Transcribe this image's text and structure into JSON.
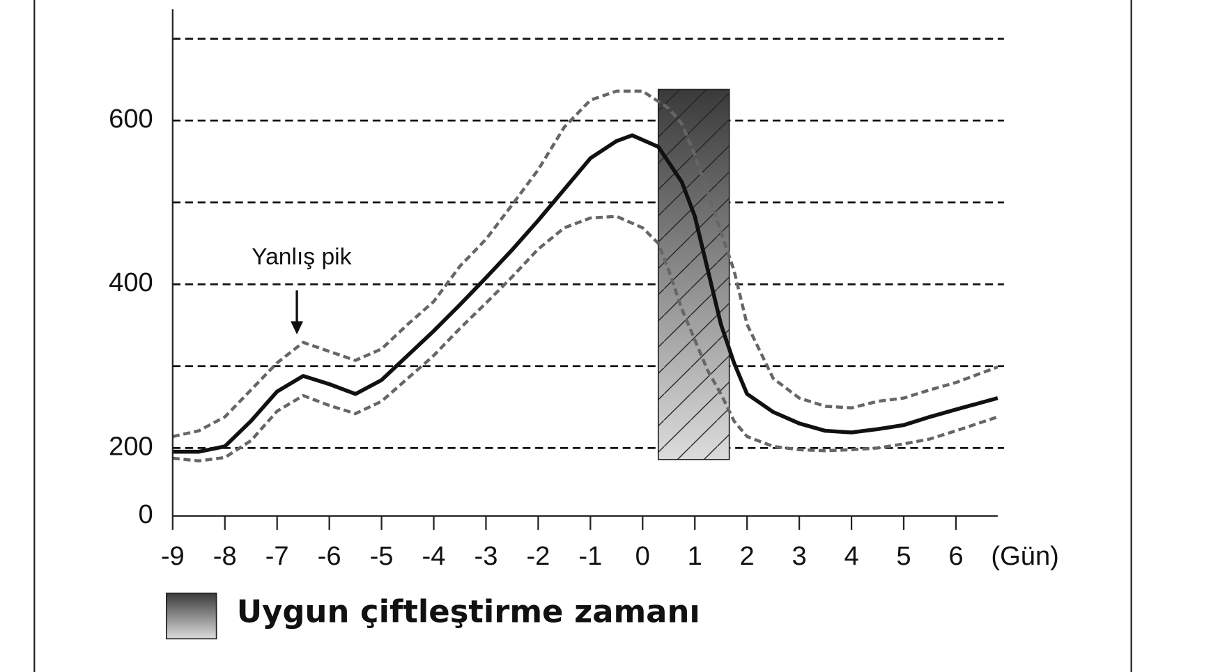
{
  "chart_data": {
    "type": "line",
    "xlim": [
      -9,
      6.8
    ],
    "xticks": [
      -9,
      -8,
      -7,
      -6,
      -5,
      -4,
      -3,
      -2,
      -1,
      0,
      1,
      2,
      3,
      4,
      5,
      6
    ],
    "x_unit": "(Gün)",
    "ylim": [
      0,
      736
    ],
    "yticks": [
      0,
      200,
      400,
      600
    ],
    "axis_break": true,
    "gridlines": [
      200,
      300,
      400,
      500,
      600,
      700
    ],
    "annotation": "Yanlış pik",
    "highlight": {
      "label": "Uygun çiftleştirme zamanı",
      "x": [
        0.3,
        1.66
      ],
      "y": [
        166,
        638
      ]
    },
    "series": [
      {
        "style": "dashed",
        "color": "#666666",
        "x": [
          -9,
          -8.5,
          -8,
          -7.5,
          -7,
          -6.5,
          -6,
          -5.5,
          -5,
          -4.5,
          -4,
          -3.5,
          -3,
          -2.5,
          -2,
          -1.5,
          -1,
          -0.5,
          0,
          0.5,
          0.75,
          1,
          1.25,
          1.5,
          1.75,
          2,
          2.5,
          3,
          3.5,
          4,
          4.5,
          5,
          5.5,
          6,
          6.8
        ],
        "values": [
          214,
          221,
          238,
          271,
          304,
          329,
          318,
          307,
          321,
          351,
          379,
          422,
          455,
          497,
          540,
          592,
          625,
          636,
          636,
          615,
          596,
          558,
          511,
          464,
          417,
          351,
          285,
          261,
          251,
          249,
          257,
          261,
          271,
          280,
          299
        ]
      },
      {
        "style": "solid",
        "color": "#111111",
        "x": [
          -9,
          -8.5,
          -8,
          -7.5,
          -7,
          -6.5,
          -6,
          -5.5,
          -5,
          -4.5,
          -4,
          -3.5,
          -3,
          -2.5,
          -2,
          -1.5,
          -1,
          -0.5,
          -0.2,
          0.3,
          0.5,
          0.75,
          1,
          1.25,
          1.5,
          1.75,
          2,
          2.5,
          3,
          3.5,
          4,
          4.5,
          5,
          5.5,
          6,
          6.8
        ],
        "values": [
          189,
          189,
          202,
          233,
          269,
          288,
          278,
          266,
          283,
          313,
          343,
          375,
          408,
          442,
          478,
          516,
          554,
          575,
          582,
          568,
          549,
          525,
          483,
          417,
          351,
          304,
          266,
          244,
          230,
          221,
          219,
          223,
          228,
          238,
          247,
          261
        ]
      },
      {
        "style": "dashed",
        "color": "#666666",
        "x": [
          -9,
          -8.5,
          -8,
          -7.5,
          -7,
          -6.5,
          -6,
          -5.5,
          -5,
          -4.5,
          -4,
          -3.5,
          -3,
          -2.5,
          -2,
          -1.5,
          -1,
          -0.5,
          0,
          0.3,
          0.5,
          0.75,
          1,
          1.25,
          1.5,
          1.75,
          2,
          2.5,
          3,
          3.5,
          4,
          4.5,
          5,
          5.5,
          6,
          6.8
        ],
        "values": [
          170,
          162,
          172,
          209,
          245,
          264,
          252,
          242,
          257,
          285,
          313,
          346,
          377,
          409,
          443,
          469,
          481,
          483,
          469,
          450,
          417,
          370,
          332,
          294,
          266,
          233,
          214,
          202,
          195,
          192,
          195,
          200,
          205,
          211,
          221,
          238
        ]
      }
    ]
  }
}
